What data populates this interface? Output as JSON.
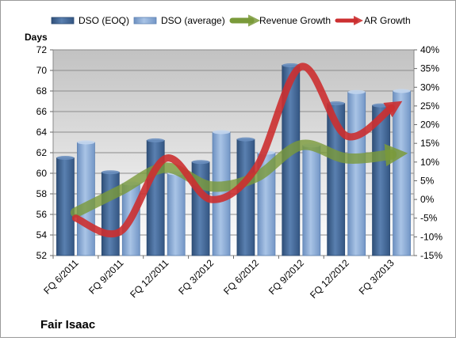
{
  "company": "Fair Isaac",
  "chart_data": {
    "type": "bar",
    "categories": [
      "FQ 6/2011",
      "FQ 9/2011",
      "FQ 12/2011",
      "FQ 3/2012",
      "FQ 6/2012",
      "FQ 9/2012",
      "FQ 12/2012",
      "FQ 3/2013"
    ],
    "ylabel": "Days",
    "ylim": [
      52,
      72
    ],
    "yticks": [
      "52",
      "54",
      "56",
      "58",
      "60",
      "62",
      "64",
      "66",
      "68",
      "70",
      "72"
    ],
    "y2lim": [
      -15,
      40
    ],
    "y2ticks": [
      "-15%",
      "-10%",
      "-5%",
      "0%",
      "5%",
      "10%",
      "15%",
      "20%",
      "25%",
      "30%",
      "35%",
      "40%"
    ],
    "legend_position": "top",
    "grid": true,
    "series": [
      {
        "name": "DSO (EOQ)",
        "type": "bar",
        "axis": "left",
        "color": "#4a6e9c",
        "values": [
          61.5,
          60.1,
          63.2,
          61.1,
          63.3,
          70.5,
          66.8,
          66.6
        ]
      },
      {
        "name": "DSO (average)",
        "type": "bar",
        "axis": "left",
        "color": "#8fb0dc",
        "values": [
          63.0,
          59.0,
          60.0,
          64.0,
          62.0,
          62.7,
          67.9,
          68.0
        ]
      },
      {
        "name": "Revenue Growth",
        "type": "line",
        "axis": "right",
        "color": "#7a9a3a",
        "values": [
          -3.5,
          2.5,
          8.5,
          3.5,
          6.0,
          14.5,
          11.0,
          12.0
        ]
      },
      {
        "name": "AR Growth",
        "type": "line",
        "axis": "right",
        "color": "#cc2f30",
        "values": [
          -5.0,
          -8.5,
          11.0,
          0.0,
          8.5,
          35.5,
          17.0,
          24.5
        ]
      }
    ]
  }
}
